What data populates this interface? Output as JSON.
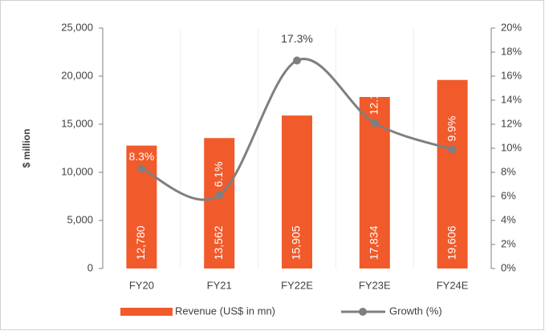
{
  "chart_data": {
    "type": "bar_line",
    "y_label": "$ million",
    "categories": [
      "FY20",
      "FY21",
      "FY22E",
      "FY23E",
      "FY24E"
    ],
    "series": [
      {
        "name": "Revenue (US$ in mn)",
        "color": "#f15a2b",
        "type": "bar",
        "values": [
          12780,
          13562,
          15905,
          17834,
          19606
        ],
        "value_labels": [
          "12,780",
          "13,562",
          "15,905",
          "17,834",
          "19,606"
        ]
      },
      {
        "name": "Growth (%)",
        "color": "#7f7f7f",
        "type": "line",
        "axis": "y2",
        "values": [
          8.3,
          6.1,
          17.3,
          12.1,
          9.9
        ],
        "value_labels": [
          "8.3%",
          "6.1%",
          "17.3%",
          "12.1%",
          "9.9%"
        ]
      }
    ],
    "ylim": [
      0,
      25000
    ],
    "yticks": [
      0,
      {
        "value": 5000,
        "label": "5,000"
      },
      {
        "value": 10000,
        "label": "10,000"
      },
      {
        "value": 15000,
        "label": "15,000"
      },
      {
        "value": 20000,
        "label": "20,000"
      },
      {
        "value": 25000,
        "label": "25,000"
      }
    ],
    "y2lim": [
      0,
      20
    ],
    "y2ticks": [
      {
        "value": 0,
        "label": "0%"
      },
      {
        "value": 2,
        "label": "2%"
      },
      {
        "value": 4,
        "label": "4%"
      },
      {
        "value": 6,
        "label": "6%"
      },
      {
        "value": 8,
        "label": "8%"
      },
      {
        "value": 10,
        "label": "10%"
      },
      {
        "value": 12,
        "label": "12%"
      },
      {
        "value": 14,
        "label": "14%"
      },
      {
        "value": 16,
        "label": "16%"
      },
      {
        "value": 18,
        "label": "18%"
      },
      {
        "value": 20,
        "label": "20%"
      }
    ]
  }
}
